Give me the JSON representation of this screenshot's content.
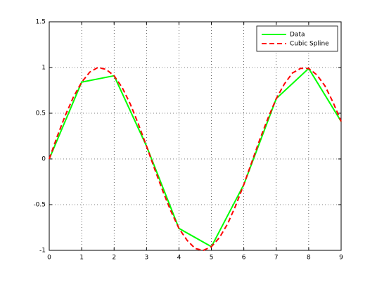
{
  "chart_data": {
    "type": "line",
    "series": [
      {
        "name": "Data",
        "color": "#00ff00",
        "dash": "solid",
        "x": [
          0,
          1,
          2,
          3,
          4,
          5,
          6,
          7,
          8,
          9
        ],
        "values": [
          0,
          0.84,
          0.91,
          0.14,
          -0.76,
          -0.96,
          -0.28,
          0.66,
          0.99,
          0.41
        ]
      },
      {
        "name": "Cubic Spline",
        "color": "#ff0000",
        "dash": "dashed",
        "x": [
          0,
          0.25,
          0.5,
          0.75,
          1,
          1.25,
          1.5,
          1.75,
          2,
          2.25,
          2.5,
          2.75,
          3,
          3.25,
          3.5,
          3.75,
          4,
          4.25,
          4.5,
          4.75,
          5,
          5.25,
          5.5,
          5.75,
          6,
          6.25,
          6.5,
          6.75,
          7,
          7.25,
          7.5,
          7.75,
          8,
          8.25,
          8.5,
          8.75,
          9
        ],
        "values": [
          0,
          0.25,
          0.48,
          0.68,
          0.84,
          0.95,
          1.0,
          0.98,
          0.91,
          0.78,
          0.6,
          0.38,
          0.14,
          -0.11,
          -0.35,
          -0.57,
          -0.76,
          -0.89,
          -0.98,
          -1.0,
          -0.96,
          -0.86,
          -0.71,
          -0.51,
          -0.28,
          -0.03,
          0.22,
          0.45,
          0.66,
          0.82,
          0.94,
          0.99,
          0.99,
          0.92,
          0.8,
          0.62,
          0.41
        ]
      }
    ],
    "xlim": [
      0,
      9
    ],
    "xticks": [
      0,
      1,
      2,
      3,
      4,
      5,
      6,
      7,
      8,
      9
    ],
    "ylim": [
      -1,
      1.5
    ],
    "yticks": [
      -1,
      -0.5,
      0,
      0.5,
      1,
      1.5
    ],
    "grid": true,
    "legend": "northeast"
  }
}
